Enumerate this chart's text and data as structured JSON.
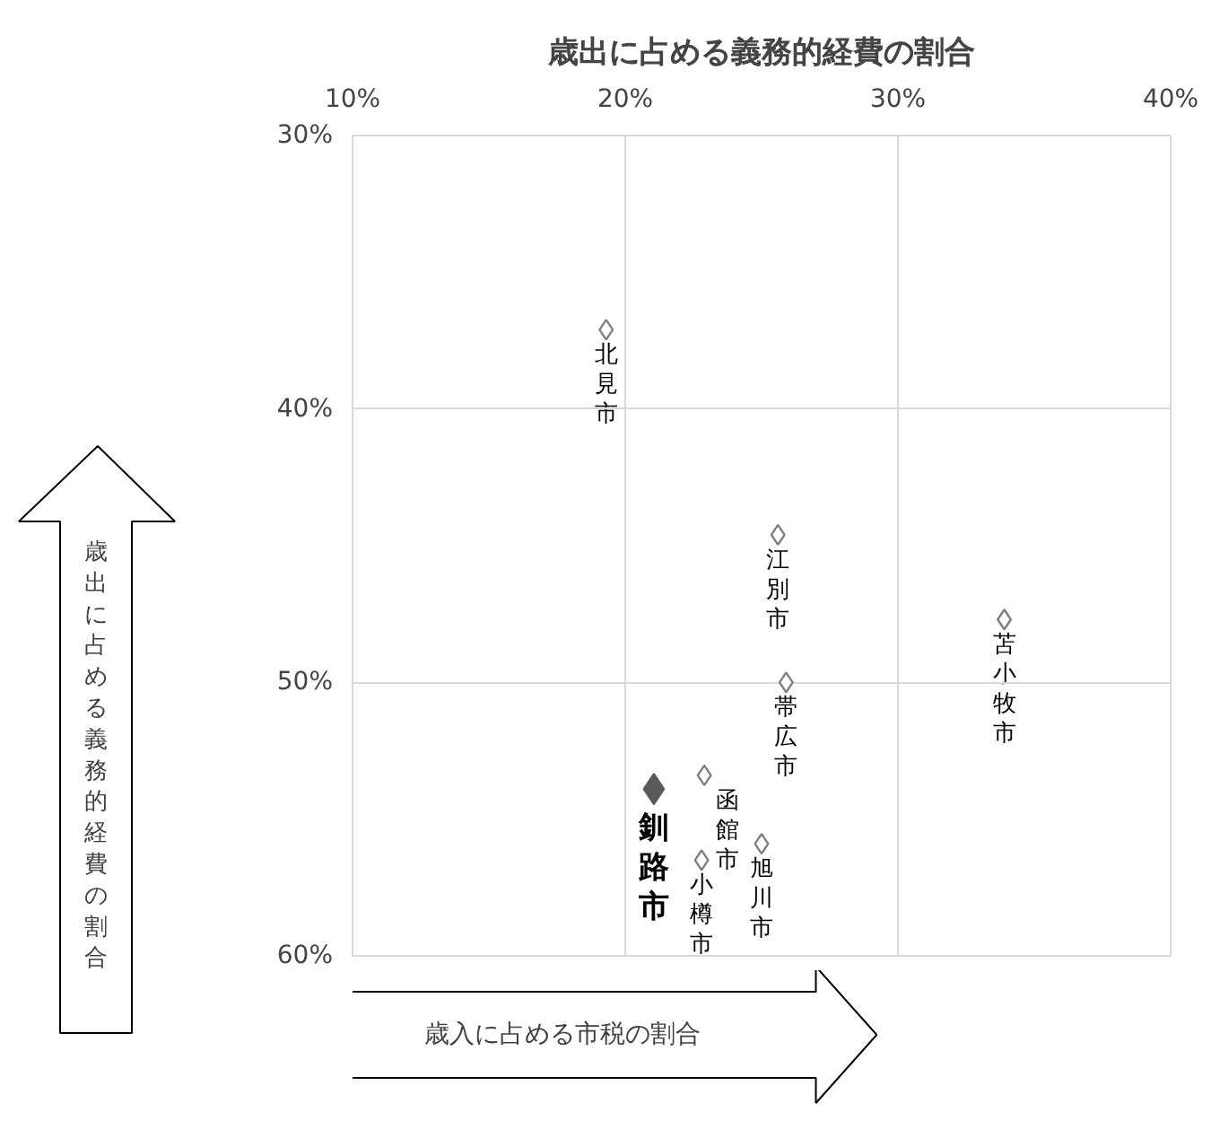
{
  "chart_data": {
    "type": "scatter",
    "title": "歳出に占める義務的経費の割合",
    "xlabel": "歳入に占める市税の割合",
    "ylabel": "歳出に占める義務的経費の割合",
    "series": [
      {
        "color": "#7f7f7f",
        "marker": "diamond",
        "x": [
          19.3,
          25.6,
          33.9,
          25.9,
          22.9,
          25.0,
          22.8
        ],
        "values": [
          37.1,
          44.6,
          47.7,
          50.0,
          53.4,
          55.9,
          56.5
        ]
      },
      {
        "color": "#595959",
        "x": [
          21.05
        ],
        "values": [
          53.9
        ]
      }
    ],
    "annotations": [
      {
        "text": "北見市",
        "x": 19.3,
        "y": 37.1
      },
      {
        "text": "江別市",
        "x": 25.6,
        "y": 44.6
      },
      {
        "text": "苫小牧市",
        "x": 33.9,
        "y": 47.7
      },
      {
        "text": "帯広市",
        "x": 25.9,
        "y": 50.0
      },
      {
        "text": "函館市",
        "x": 22.9,
        "y": 53.4
      },
      {
        "text": "旭川市",
        "x": 25.0,
        "y": 55.9
      },
      {
        "text": "小樽市",
        "x": 22.8,
        "y": 56.5
      },
      {
        "text": "釧路市",
        "x": 21.05,
        "y": 53.9
      }
    ],
    "xlim": [
      10,
      40
    ],
    "xticks": [
      {
        "value": 10,
        "label": "10%"
      },
      {
        "value": 20,
        "label": "20%"
      },
      {
        "value": 30,
        "label": "30%"
      },
      {
        "value": 40,
        "label": "40%"
      }
    ],
    "ylim": [
      60,
      30
    ],
    "yticks": [
      {
        "value": 30,
        "label": "30%"
      },
      {
        "value": 40,
        "label": "40%"
      },
      {
        "value": 50,
        "label": "50%"
      },
      {
        "value": 60,
        "label": "60%"
      }
    ],
    "grid": true,
    "marker": "diamond"
  }
}
